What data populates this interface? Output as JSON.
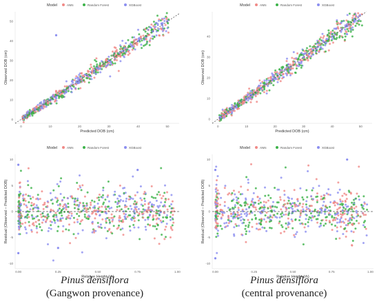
{
  "colors": {
    "ANN": "#f08a87",
    "Random Forest": "#3db34a",
    "XGBoost": "#8c8ff0",
    "ref_line": "#555555"
  },
  "captions": [
    {
      "species": "Pinus densiflora",
      "provenance": "(Gangwon provenance)"
    },
    {
      "species": "Pinus densiflora",
      "provenance": "(central provenance)"
    }
  ],
  "chart_data": [
    {
      "type": "scatter",
      "title": "",
      "legend_title": "Model",
      "legend_position": "top",
      "series": [
        {
          "name": "ANN"
        },
        {
          "name": "Random Forest"
        },
        {
          "name": "XGBoost"
        }
      ],
      "xlabel": "Predicted DOB (cm)",
      "ylabel": "Observed DOB (cm)",
      "xlim": [
        -2,
        54
      ],
      "ylim": [
        -2,
        55
      ],
      "xticks": [
        0,
        10,
        20,
        30,
        40,
        50
      ],
      "yticks": [
        0,
        10,
        20,
        30,
        40,
        50
      ],
      "reference_line": "y = x",
      "grid": false,
      "approx_points": [
        [
          1,
          1
        ],
        [
          5,
          5
        ],
        [
          10,
          10
        ],
        [
          15,
          15
        ],
        [
          20,
          20
        ],
        [
          25,
          25
        ],
        [
          30,
          30
        ],
        [
          35,
          35
        ],
        [
          40,
          40
        ],
        [
          45,
          45
        ],
        [
          48,
          49
        ],
        [
          12,
          43
        ]
      ]
    },
    {
      "type": "scatter",
      "title": "",
      "legend_title": "Model",
      "legend_position": "top",
      "series": [
        {
          "name": "ANN"
        },
        {
          "name": "Random Forest"
        },
        {
          "name": "XGBoost"
        }
      ],
      "xlabel": "Predicted DOB (cm)",
      "ylabel": "Observed DOB (cm)",
      "xlim": [
        -2,
        54
      ],
      "ylim": [
        -2,
        52
      ],
      "xticks": [
        0,
        10,
        20,
        30,
        40,
        50
      ],
      "yticks": [
        0,
        10,
        20,
        30,
        40
      ],
      "reference_line": "y = x",
      "grid": false,
      "approx_points": [
        [
          1,
          1
        ],
        [
          5,
          5
        ],
        [
          10,
          10
        ],
        [
          15,
          15
        ],
        [
          20,
          20
        ],
        [
          25,
          25
        ],
        [
          30,
          30
        ],
        [
          35,
          35
        ],
        [
          40,
          40
        ],
        [
          45,
          45
        ],
        [
          48,
          48
        ]
      ]
    },
    {
      "type": "scatter",
      "title": "",
      "legend_title": "Model",
      "legend_position": "top",
      "series": [
        {
          "name": "ANN"
        },
        {
          "name": "Random Forest"
        },
        {
          "name": "XGBoost"
        }
      ],
      "xlabel": "Relative Height (rh)",
      "ylabel": "Residual (Observed – Predicted DOB)",
      "xlim": [
        -0.02,
        1.02
      ],
      "ylim": [
        -11,
        11
      ],
      "xticks": [
        0.0,
        0.25,
        0.5,
        0.75,
        1.0
      ],
      "xticklabels": [
        "0.00",
        "0.25",
        "0.50",
        "0.75",
        "1.00"
      ],
      "yticks": [
        -10,
        -5,
        0,
        5,
        10
      ],
      "reference_line": "y = 0",
      "grid": false,
      "approx_points": [
        [
          0.0,
          -8
        ],
        [
          0.0,
          9
        ],
        [
          0.25,
          -7
        ],
        [
          0.75,
          8
        ],
        [
          0.5,
          0
        ]
      ]
    },
    {
      "type": "scatter",
      "title": "",
      "legend_title": "Model",
      "legend_position": "top",
      "series": [
        {
          "name": "ANN"
        },
        {
          "name": "Random Forest"
        },
        {
          "name": "XGBoost"
        }
      ],
      "xlabel": "Relative Height (rh)",
      "ylabel": "Residual (Observed – Predicted DOB)",
      "xlim": [
        -0.02,
        1.02
      ],
      "ylim": [
        -11,
        11
      ],
      "xticks": [
        0.0,
        0.25,
        0.5,
        0.75,
        1.0
      ],
      "xticklabels": [
        "0.00",
        "0.25",
        "0.50",
        "0.75",
        "1.00"
      ],
      "yticks": [
        -10,
        -5,
        0,
        5,
        10
      ],
      "reference_line": "y = 0",
      "grid": false,
      "approx_points": [
        [
          0.0,
          -9
        ],
        [
          0.0,
          8
        ],
        [
          0.85,
          10
        ],
        [
          0.5,
          0
        ]
      ]
    }
  ]
}
